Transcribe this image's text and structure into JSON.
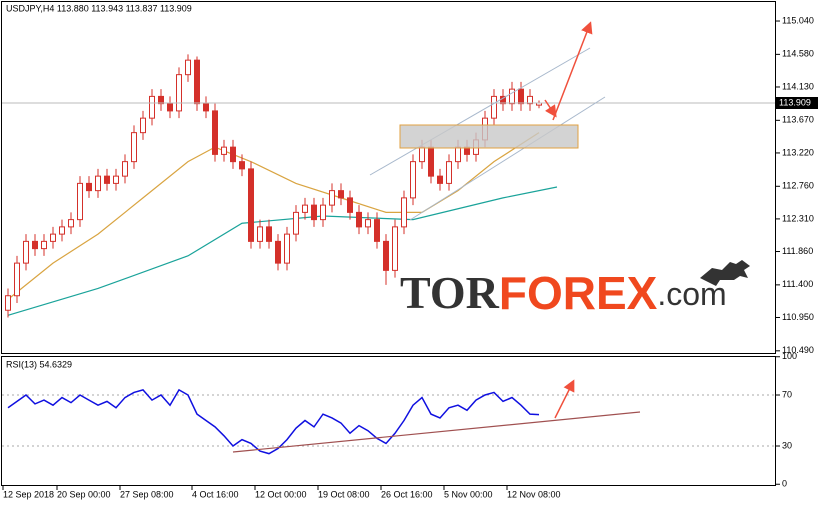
{
  "chart_data": {
    "type": "candlestick",
    "header": "USDJPY,H4  113.880 113.943 113.837 113.909",
    "categories": [
      "12 Sep 2018",
      null,
      null,
      null,
      null,
      null,
      "20 Sep 00:00",
      null,
      null,
      null,
      null,
      null,
      null,
      "27 Sep 08:00",
      null,
      null,
      null,
      null,
      null,
      null,
      null,
      "4 Oct 16:00",
      null,
      null,
      null,
      null,
      null,
      null,
      "12 Oct 00:00",
      null,
      null,
      null,
      null,
      null,
      null,
      "19 Oct 08:00",
      null,
      null,
      null,
      null,
      null,
      null,
      "26 Oct 16:00",
      null,
      null,
      null,
      null,
      null,
      null,
      "5 Nov 00:00",
      null,
      null,
      null,
      null,
      null,
      null,
      "12 Nov 08:00",
      null,
      null,
      null
    ],
    "open": [
      111.05,
      111.25,
      111.7,
      112.0,
      111.9,
      112.0,
      112.1,
      112.2,
      112.3,
      112.8,
      112.7,
      112.9,
      112.8,
      112.9,
      113.1,
      113.5,
      113.7,
      114.0,
      113.9,
      113.8,
      114.3,
      114.5,
      113.9,
      113.8,
      113.2,
      113.3,
      113.1,
      113.0,
      112.0,
      112.2,
      112.0,
      111.7,
      112.1,
      112.4,
      112.5,
      112.3,
      112.5,
      112.7,
      112.6,
      112.4,
      112.2,
      112.3,
      112.0,
      111.6,
      112.2,
      112.6,
      113.1,
      113.3,
      112.9,
      112.8,
      113.1,
      113.3,
      113.2,
      113.4,
      113.7,
      114.0,
      113.9,
      114.1,
      113.9,
      113.88
    ],
    "high": [
      111.35,
      111.8,
      112.1,
      112.1,
      112.1,
      112.2,
      112.3,
      112.4,
      112.9,
      112.9,
      113.0,
      113.0,
      113.0,
      113.2,
      113.6,
      113.8,
      114.1,
      114.1,
      114.0,
      114.4,
      114.58,
      114.55,
      114.0,
      113.9,
      113.4,
      113.4,
      113.2,
      113.1,
      112.3,
      112.3,
      112.1,
      112.2,
      112.5,
      112.6,
      112.6,
      112.6,
      112.8,
      112.8,
      112.7,
      112.5,
      112.4,
      112.4,
      112.1,
      112.3,
      112.7,
      113.2,
      113.4,
      113.4,
      113.0,
      113.2,
      113.4,
      113.4,
      113.5,
      113.8,
      114.1,
      114.1,
      114.2,
      114.2,
      114.1,
      113.943
    ],
    "low": [
      110.95,
      111.15,
      111.6,
      111.8,
      111.8,
      111.9,
      112.0,
      112.1,
      112.2,
      112.6,
      112.6,
      112.7,
      112.7,
      112.8,
      113.0,
      113.4,
      113.6,
      113.8,
      113.7,
      113.7,
      114.2,
      113.8,
      113.7,
      113.1,
      113.1,
      113.0,
      112.9,
      111.9,
      111.9,
      111.9,
      111.6,
      111.6,
      112.0,
      112.3,
      112.2,
      112.2,
      112.4,
      112.5,
      112.3,
      112.1,
      112.1,
      111.9,
      111.4,
      111.5,
      112.1,
      112.5,
      113.0,
      112.8,
      112.7,
      112.7,
      113.0,
      113.1,
      113.1,
      113.3,
      113.6,
      113.8,
      113.8,
      113.8,
      113.8,
      113.837
    ],
    "close": [
      111.25,
      111.7,
      112.0,
      111.9,
      112.0,
      112.1,
      112.2,
      112.3,
      112.8,
      112.7,
      112.9,
      112.8,
      112.9,
      113.1,
      113.5,
      113.7,
      114.0,
      113.9,
      113.8,
      114.3,
      114.5,
      113.9,
      113.8,
      113.2,
      113.3,
      113.1,
      113.0,
      112.0,
      112.2,
      112.0,
      111.7,
      112.1,
      112.4,
      112.5,
      112.3,
      112.5,
      112.7,
      112.6,
      112.4,
      112.2,
      112.3,
      112.0,
      111.6,
      112.2,
      112.6,
      113.1,
      113.3,
      112.9,
      112.8,
      113.1,
      113.3,
      113.2,
      113.4,
      113.7,
      114.0,
      113.9,
      114.1,
      113.9,
      114.0,
      113.909
    ],
    "color": "#d4302a",
    "moving_averages": [
      {
        "color": "#d9a441",
        "x": [
          0,
          5,
          10,
          15,
          20,
          23,
          27,
          32,
          37,
          42,
          46,
          50,
          54,
          59
        ],
        "values": [
          111.2,
          111.7,
          112.1,
          112.6,
          113.1,
          113.3,
          113.1,
          112.8,
          112.6,
          112.4,
          112.4,
          112.7,
          113.1,
          113.5
        ]
      },
      {
        "color": "#1aa39a",
        "x": [
          0,
          10,
          20,
          26,
          35,
          45,
          50,
          55,
          61
        ],
        "values": [
          110.98,
          111.35,
          111.8,
          112.25,
          112.35,
          112.3,
          112.45,
          112.6,
          112.75
        ]
      }
    ],
    "last_price": 113.909,
    "ylim": [
      110.46,
      115.33
    ],
    "yticks": [
      {
        "value": 115.04,
        "label": "115.040"
      },
      {
        "value": 114.58,
        "label": "114.580"
      },
      {
        "value": 114.13,
        "label": "114.130"
      },
      {
        "value": 113.67,
        "label": "113.670"
      },
      {
        "value": 113.22,
        "label": "113.220"
      },
      {
        "value": 112.76,
        "label": "112.760"
      },
      {
        "value": 112.31,
        "label": "112.310"
      },
      {
        "value": 111.86,
        "label": "111.860"
      },
      {
        "value": 111.4,
        "label": "111.400"
      },
      {
        "value": 110.95,
        "label": "110.950"
      },
      {
        "value": 110.49,
        "label": "110.490"
      }
    ],
    "watermark": [
      "TOR",
      "FOREX",
      ".com"
    ],
    "rsi": {
      "header": "RSI(13) 54.6329",
      "color": "#1010e0",
      "values": [
        60,
        65,
        70,
        63,
        66,
        62,
        68,
        64,
        70,
        66,
        62,
        65,
        60,
        68,
        72,
        74,
        66,
        70,
        62,
        74,
        70,
        55,
        50,
        45,
        38,
        30,
        35,
        32,
        26,
        24,
        28,
        35,
        44,
        50,
        45,
        55,
        52,
        48,
        40,
        46,
        42,
        36,
        32,
        40,
        50,
        62,
        68,
        55,
        52,
        60,
        62,
        58,
        66,
        70,
        72,
        65,
        68,
        62,
        55,
        54.6329
      ],
      "ylim": [
        0,
        100
      ],
      "yticks": [
        100,
        70,
        30,
        0
      ]
    }
  }
}
